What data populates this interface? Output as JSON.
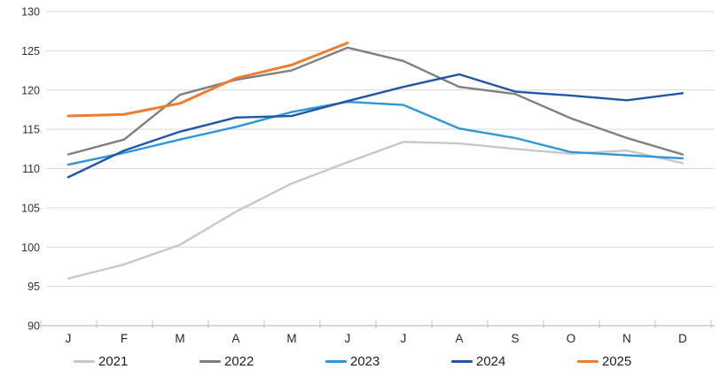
{
  "chart_data": {
    "type": "line",
    "title": "",
    "xlabel": "",
    "ylabel": "",
    "x_categories": [
      "J",
      "F",
      "M",
      "A",
      "M",
      "J",
      "J",
      "A",
      "S",
      "O",
      "N",
      "D"
    ],
    "y_ticks": [
      90,
      95,
      100,
      105,
      110,
      115,
      120,
      125,
      130
    ],
    "ylim": [
      90,
      130
    ],
    "grid": "horizontal",
    "legend_position": "bottom",
    "colors": {
      "grid": "#d9d9d9",
      "axis": "#bfbfbf",
      "tick_text": "#333333"
    },
    "series": [
      {
        "name": "2021",
        "color": "#c8c8c8",
        "width": 2.4,
        "values": [
          96.0,
          97.8,
          100.3,
          104.5,
          108.1,
          110.8,
          113.4,
          113.2,
          112.5,
          111.9,
          112.3,
          110.7
        ]
      },
      {
        "name": "2022",
        "color": "#7f7f7f",
        "width": 2.4,
        "values": [
          111.8,
          113.7,
          119.4,
          121.3,
          122.5,
          125.4,
          123.7,
          120.4,
          119.5,
          116.4,
          113.9,
          111.8
        ]
      },
      {
        "name": "2023",
        "color": "#2e96d9",
        "width": 2.4,
        "values": [
          110.5,
          112.0,
          113.7,
          115.3,
          117.2,
          118.5,
          118.1,
          115.1,
          113.9,
          112.1,
          111.7,
          111.3
        ]
      },
      {
        "name": "2024",
        "color": "#2156a5",
        "width": 2.4,
        "values": [
          108.9,
          112.3,
          114.7,
          116.5,
          116.7,
          118.6,
          120.4,
          122.0,
          119.8,
          119.3,
          118.7,
          119.6
        ]
      },
      {
        "name": "2025",
        "color": "#ed7d31",
        "width": 3,
        "values": [
          116.7,
          116.9,
          118.3,
          121.5,
          123.2,
          126.0,
          null,
          null,
          null,
          null,
          null,
          null
        ]
      }
    ]
  }
}
